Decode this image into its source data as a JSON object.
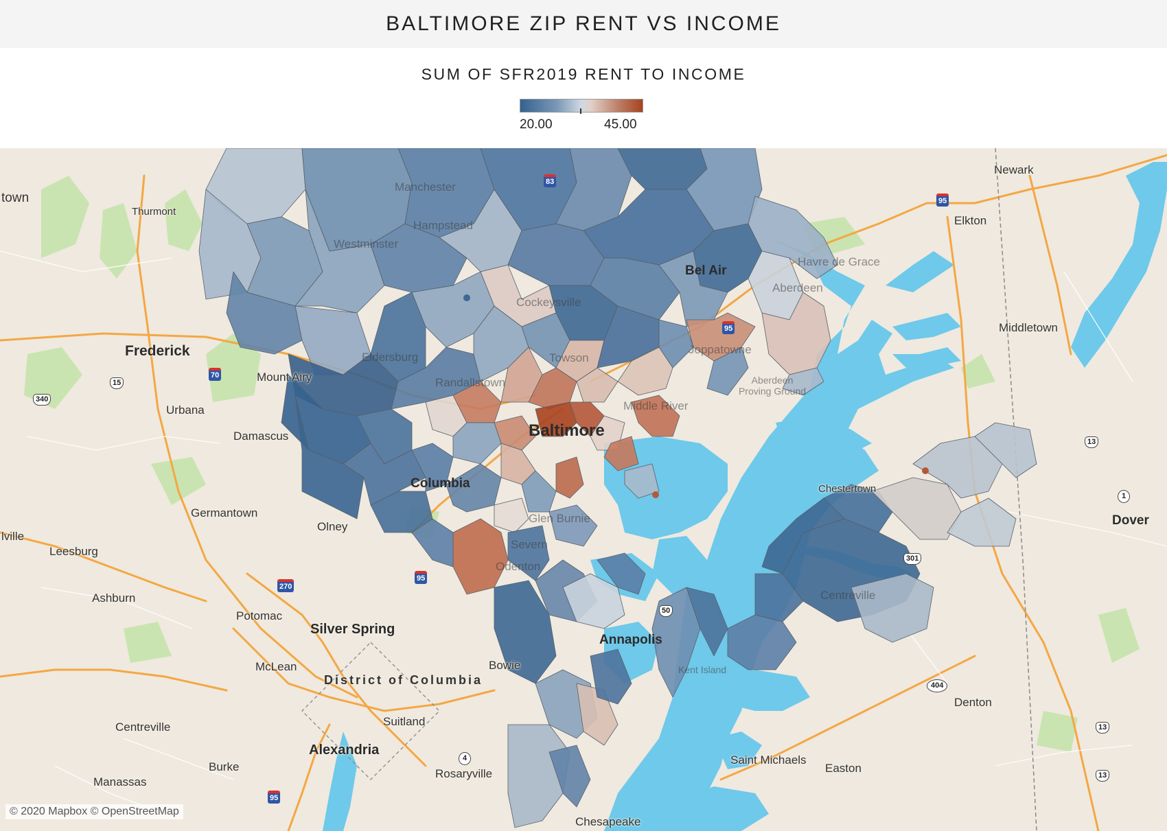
{
  "header": {
    "title": "BALTIMORE ZIP RENT VS INCOME"
  },
  "legend": {
    "title": "SUM OF SFR2019 RENT TO INCOME",
    "min_label": "20.00",
    "max_label": "45.00",
    "min_value": 20,
    "max_value": 45,
    "color_low": "#35628f",
    "color_mid": "#d6dee6",
    "color_high": "#a8431f"
  },
  "map": {
    "base_colors": {
      "land": "#efe9df",
      "water": "#6ec9ea",
      "parks": "#c9e4b0",
      "highway": "#f4a743"
    },
    "places": [
      {
        "name": "Manchester",
        "dim": true
      },
      {
        "name": "Hampstead",
        "dim": true
      },
      {
        "name": "Westminster",
        "dim": true
      },
      {
        "name": "Cockeysville",
        "dim": true
      },
      {
        "name": "Bel Air",
        "dim": true
      },
      {
        "name": "Havre de Grace",
        "dim": true
      },
      {
        "name": "Aberdeen",
        "dim": true
      },
      {
        "name": "Eldersburg",
        "dim": true
      },
      {
        "name": "Towson",
        "dim": true
      },
      {
        "name": "Joppatowne",
        "dim": true
      },
      {
        "name": "Randallstown",
        "dim": true
      },
      {
        "name": "Middle River",
        "dim": true
      },
      {
        "name": "Aberdeen Proving Ground",
        "dim": true
      },
      {
        "name": "Baltimore",
        "dim": true
      },
      {
        "name": "Columbia",
        "dim": true
      },
      {
        "name": "Glen Burnie",
        "dim": true
      },
      {
        "name": "Severn",
        "dim": true
      },
      {
        "name": "Odenton",
        "dim": true
      },
      {
        "name": "Centreville",
        "dim": true
      },
      {
        "name": "Annapolis",
        "dim": true
      },
      {
        "name": "Kent Island",
        "dim": true
      },
      {
        "name": "Newark",
        "dim": false
      },
      {
        "name": "Elkton",
        "dim": false
      },
      {
        "name": "Middletown",
        "dim": false
      },
      {
        "name": "Thurmont",
        "dim": false
      },
      {
        "name": "Frederick",
        "dim": false
      },
      {
        "name": "Mount Airy",
        "dim": false
      },
      {
        "name": "Urbana",
        "dim": false
      },
      {
        "name": "Damascus",
        "dim": false
      },
      {
        "name": "Germantown",
        "dim": false
      },
      {
        "name": "Olney",
        "dim": false
      },
      {
        "name": "Leesburg",
        "dim": false
      },
      {
        "name": "Ashburn",
        "dim": false
      },
      {
        "name": "Potomac",
        "dim": false
      },
      {
        "name": "Silver Spring",
        "dim": false
      },
      {
        "name": "McLean",
        "dim": false
      },
      {
        "name": "District of Columbia",
        "dim": false
      },
      {
        "name": "Bowie",
        "dim": false
      },
      {
        "name": "Centreville",
        "dim": false
      },
      {
        "name": "Suitland",
        "dim": false
      },
      {
        "name": "Alexandria",
        "dim": false
      },
      {
        "name": "Burke",
        "dim": false
      },
      {
        "name": "Manassas",
        "dim": false
      },
      {
        "name": "Rosaryville",
        "dim": false
      },
      {
        "name": "Chestertown",
        "dim": false
      },
      {
        "name": "Dover",
        "dim": false
      },
      {
        "name": "Denton",
        "dim": false
      },
      {
        "name": "Saint Michaels",
        "dim": false
      },
      {
        "name": "Easton",
        "dim": false
      },
      {
        "name": "Chesapeake",
        "dim": false
      },
      {
        "name": "town",
        "dim": false
      },
      {
        "name": "lville",
        "dim": false
      }
    ],
    "shields": [
      "95",
      "70",
      "15",
      "340",
      "83",
      "95",
      "270",
      "95",
      "50",
      "4",
      "404",
      "13",
      "1",
      "13",
      "13",
      "301",
      "95"
    ],
    "copyright": "© 2020 Mapbox © OpenStreetMap"
  }
}
